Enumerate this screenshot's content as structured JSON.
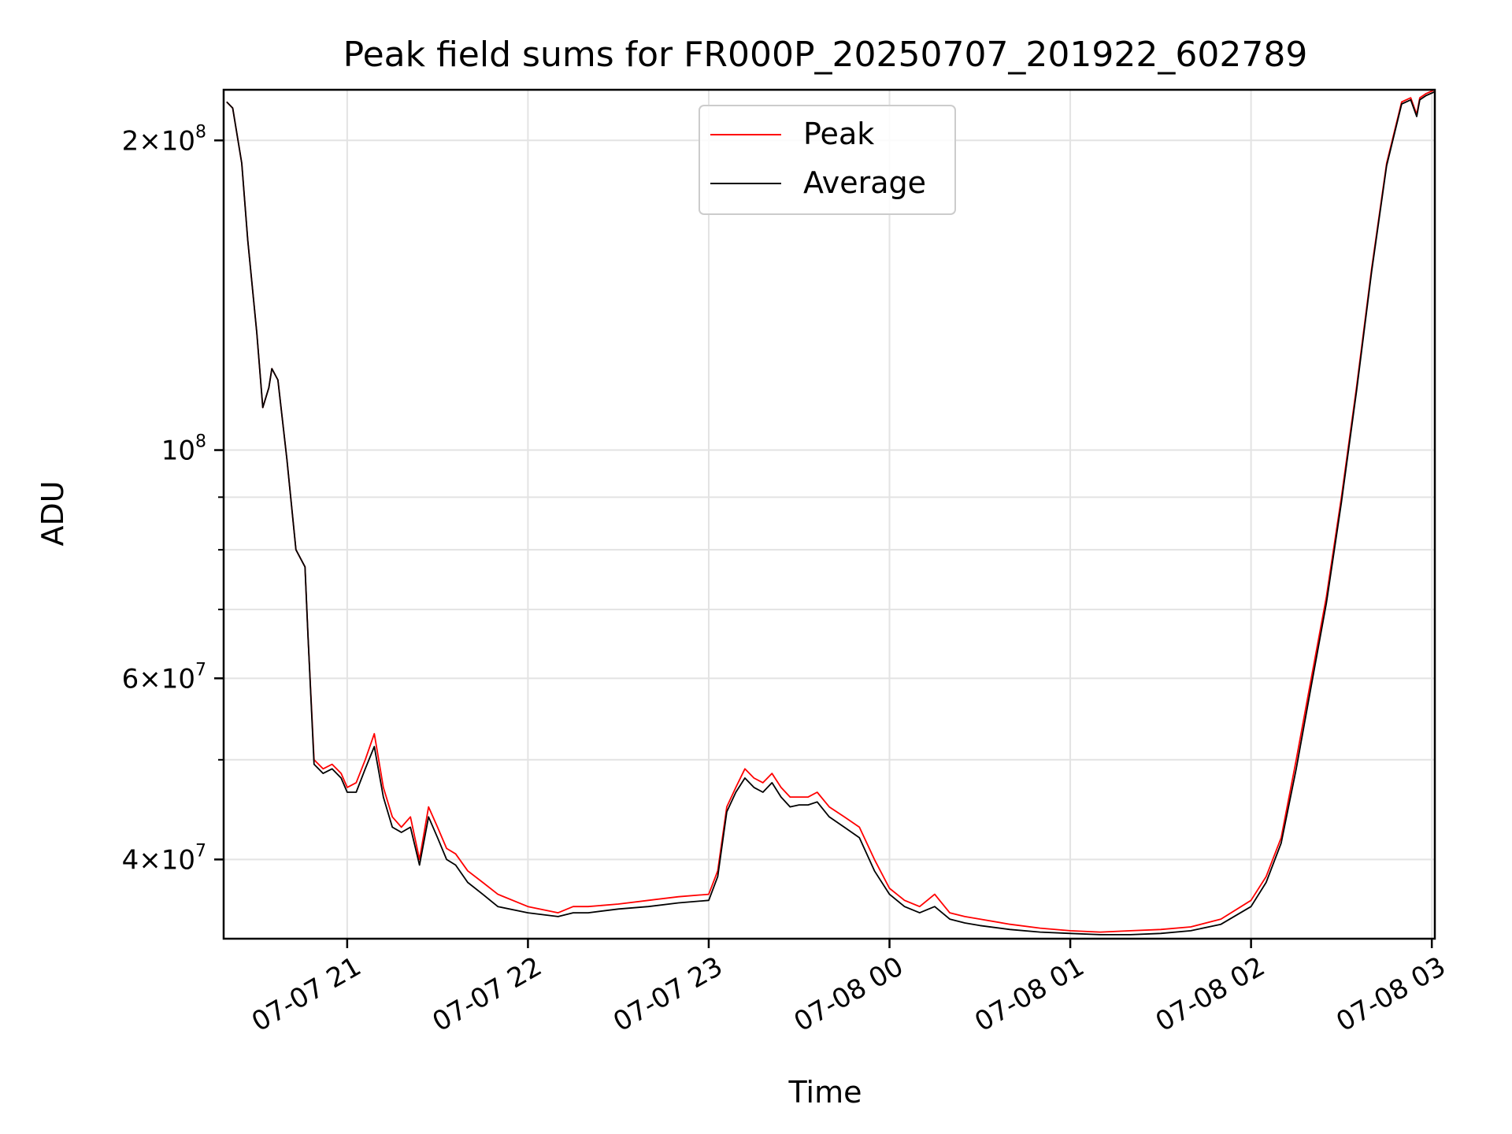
{
  "chart_data": {
    "type": "line",
    "title": "Peak field sums for FR000P_20250707_201922_602789",
    "xlabel": "Time",
    "ylabel": "ADU",
    "yscale": "log",
    "grid": true,
    "legend_position": "top-center",
    "xlim": [
      "2025-07-07 20:19",
      "2025-07-08 03:01"
    ],
    "ylim": [
      33500000,
      224000000
    ],
    "x_ticks": [
      {
        "value": "2025-07-07 21:00",
        "label": "07-07 21"
      },
      {
        "value": "2025-07-07 22:00",
        "label": "07-07 22"
      },
      {
        "value": "2025-07-07 23:00",
        "label": "07-07 23"
      },
      {
        "value": "2025-07-08 00:00",
        "label": "07-08 00"
      },
      {
        "value": "2025-07-08 01:00",
        "label": "07-08 01"
      },
      {
        "value": "2025-07-08 02:00",
        "label": "07-08 02"
      },
      {
        "value": "2025-07-08 03:00",
        "label": "07-08 03"
      }
    ],
    "y_ticks": [
      {
        "value": 40000000,
        "mantissa": "4",
        "exponent": "7"
      },
      {
        "value": 60000000,
        "mantissa": "6",
        "exponent": "7"
      },
      {
        "value": 100000000,
        "mantissa": "",
        "exponent": "8"
      },
      {
        "value": 200000000,
        "mantissa": "2",
        "exponent": "8"
      }
    ],
    "y_minor_ticks": [
      50000000,
      70000000,
      80000000,
      90000000
    ],
    "series": [
      {
        "name": "Peak",
        "color": "#ff0000",
        "x": [
          "2025-07-07 20:20",
          "2025-07-07 20:22",
          "2025-07-07 20:25",
          "2025-07-07 20:27",
          "2025-07-07 20:30",
          "2025-07-07 20:32",
          "2025-07-07 20:34",
          "2025-07-07 20:35",
          "2025-07-07 20:37",
          "2025-07-07 20:40",
          "2025-07-07 20:43",
          "2025-07-07 20:46",
          "2025-07-07 20:47",
          "2025-07-07 20:49",
          "2025-07-07 20:52",
          "2025-07-07 20:55",
          "2025-07-07 20:58",
          "2025-07-07 21:00",
          "2025-07-07 21:03",
          "2025-07-07 21:06",
          "2025-07-07 21:09",
          "2025-07-07 21:12",
          "2025-07-07 21:15",
          "2025-07-07 21:18",
          "2025-07-07 21:21",
          "2025-07-07 21:24",
          "2025-07-07 21:27",
          "2025-07-07 21:30",
          "2025-07-07 21:33",
          "2025-07-07 21:36",
          "2025-07-07 21:40",
          "2025-07-07 21:45",
          "2025-07-07 21:50",
          "2025-07-07 22:00",
          "2025-07-07 22:10",
          "2025-07-07 22:15",
          "2025-07-07 22:20",
          "2025-07-07 22:30",
          "2025-07-07 22:40",
          "2025-07-07 22:50",
          "2025-07-07 23:00",
          "2025-07-07 23:03",
          "2025-07-07 23:06",
          "2025-07-07 23:09",
          "2025-07-07 23:12",
          "2025-07-07 23:15",
          "2025-07-07 23:18",
          "2025-07-07 23:21",
          "2025-07-07 23:24",
          "2025-07-07 23:27",
          "2025-07-07 23:30",
          "2025-07-07 23:33",
          "2025-07-07 23:36",
          "2025-07-07 23:40",
          "2025-07-07 23:45",
          "2025-07-07 23:50",
          "2025-07-07 23:55",
          "2025-07-08 00:00",
          "2025-07-08 00:05",
          "2025-07-08 00:10",
          "2025-07-08 00:15",
          "2025-07-08 00:20",
          "2025-07-08 00:25",
          "2025-07-08 00:30",
          "2025-07-08 00:40",
          "2025-07-08 00:50",
          "2025-07-08 01:00",
          "2025-07-08 01:10",
          "2025-07-08 01:20",
          "2025-07-08 01:30",
          "2025-07-08 01:40",
          "2025-07-08 01:50",
          "2025-07-08 02:00",
          "2025-07-08 02:05",
          "2025-07-08 02:10",
          "2025-07-08 02:15",
          "2025-07-08 02:20",
          "2025-07-08 02:25",
          "2025-07-08 02:30",
          "2025-07-08 02:35",
          "2025-07-08 02:40",
          "2025-07-08 02:45",
          "2025-07-08 02:50",
          "2025-07-08 02:53",
          "2025-07-08 02:55",
          "2025-07-08 02:56",
          "2025-07-08 02:58",
          "2025-07-08 03:01"
        ],
        "values": [
          218000000,
          215000000,
          190000000,
          160000000,
          130000000,
          110000000,
          115000000,
          120000000,
          117000000,
          98000000,
          80000000,
          77000000,
          66000000,
          50000000,
          49000000,
          49500000,
          48500000,
          47000000,
          47500000,
          50000000,
          53000000,
          47000000,
          44000000,
          43000000,
          44000000,
          40000000,
          45000000,
          43000000,
          41000000,
          40500000,
          39000000,
          38000000,
          37000000,
          36000000,
          35500000,
          36000000,
          36000000,
          36200000,
          36500000,
          36800000,
          37000000,
          39000000,
          45000000,
          47000000,
          49000000,
          48000000,
          47500000,
          48500000,
          47000000,
          46000000,
          46000000,
          46000000,
          46500000,
          45000000,
          44000000,
          43000000,
          40000000,
          37500000,
          36500000,
          36000000,
          37000000,
          35500000,
          35200000,
          35000000,
          34600000,
          34300000,
          34100000,
          34000000,
          34100000,
          34200000,
          34400000,
          35000000,
          36500000,
          38500000,
          42000000,
          50000000,
          60000000,
          72000000,
          90000000,
          115000000,
          150000000,
          190000000,
          218000000,
          220000000,
          212000000,
          220000000,
          222000000,
          224000000
        ]
      },
      {
        "name": "Average",
        "color": "#000000",
        "x": [
          "2025-07-07 20:20",
          "2025-07-07 20:22",
          "2025-07-07 20:25",
          "2025-07-07 20:27",
          "2025-07-07 20:30",
          "2025-07-07 20:32",
          "2025-07-07 20:34",
          "2025-07-07 20:35",
          "2025-07-07 20:37",
          "2025-07-07 20:40",
          "2025-07-07 20:43",
          "2025-07-07 20:46",
          "2025-07-07 20:47",
          "2025-07-07 20:49",
          "2025-07-07 20:52",
          "2025-07-07 20:55",
          "2025-07-07 20:58",
          "2025-07-07 21:00",
          "2025-07-07 21:03",
          "2025-07-07 21:06",
          "2025-07-07 21:09",
          "2025-07-07 21:12",
          "2025-07-07 21:15",
          "2025-07-07 21:18",
          "2025-07-07 21:21",
          "2025-07-07 21:24",
          "2025-07-07 21:27",
          "2025-07-07 21:30",
          "2025-07-07 21:33",
          "2025-07-07 21:36",
          "2025-07-07 21:40",
          "2025-07-07 21:45",
          "2025-07-07 21:50",
          "2025-07-07 22:00",
          "2025-07-07 22:10",
          "2025-07-07 22:15",
          "2025-07-07 22:20",
          "2025-07-07 22:30",
          "2025-07-07 22:40",
          "2025-07-07 22:50",
          "2025-07-07 23:00",
          "2025-07-07 23:03",
          "2025-07-07 23:06",
          "2025-07-07 23:09",
          "2025-07-07 23:12",
          "2025-07-07 23:15",
          "2025-07-07 23:18",
          "2025-07-07 23:21",
          "2025-07-07 23:24",
          "2025-07-07 23:27",
          "2025-07-07 23:30",
          "2025-07-07 23:33",
          "2025-07-07 23:36",
          "2025-07-07 23:40",
          "2025-07-07 23:45",
          "2025-07-07 23:50",
          "2025-07-07 23:55",
          "2025-07-08 00:00",
          "2025-07-08 00:05",
          "2025-07-08 00:10",
          "2025-07-08 00:15",
          "2025-07-08 00:20",
          "2025-07-08 00:25",
          "2025-07-08 00:30",
          "2025-07-08 00:40",
          "2025-07-08 00:50",
          "2025-07-08 01:00",
          "2025-07-08 01:10",
          "2025-07-08 01:20",
          "2025-07-08 01:30",
          "2025-07-08 01:40",
          "2025-07-08 01:50",
          "2025-07-08 02:00",
          "2025-07-08 02:05",
          "2025-07-08 02:10",
          "2025-07-08 02:15",
          "2025-07-08 02:20",
          "2025-07-08 02:25",
          "2025-07-08 02:30",
          "2025-07-08 02:35",
          "2025-07-08 02:40",
          "2025-07-08 02:45",
          "2025-07-08 02:50",
          "2025-07-08 02:53",
          "2025-07-08 02:55",
          "2025-07-08 02:56",
          "2025-07-08 02:58",
          "2025-07-08 03:01"
        ],
        "values": [
          218000000,
          215000000,
          190000000,
          160000000,
          130000000,
          110000000,
          115000000,
          120000000,
          117000000,
          98000000,
          80000000,
          77000000,
          66000000,
          49500000,
          48500000,
          49000000,
          48000000,
          46500000,
          46500000,
          49000000,
          51500000,
          46000000,
          43000000,
          42500000,
          43000000,
          39500000,
          44000000,
          42000000,
          40000000,
          39500000,
          38000000,
          37000000,
          36000000,
          35500000,
          35200000,
          35500000,
          35500000,
          35800000,
          36000000,
          36300000,
          36500000,
          38500000,
          44500000,
          46500000,
          48000000,
          47000000,
          46500000,
          47500000,
          46000000,
          45000000,
          45200000,
          45200000,
          45500000,
          44000000,
          43000000,
          42000000,
          39000000,
          37000000,
          36000000,
          35500000,
          36000000,
          35000000,
          34700000,
          34500000,
          34200000,
          34000000,
          33900000,
          33800000,
          33800000,
          33900000,
          34100000,
          34600000,
          36000000,
          38000000,
          41500000,
          49000000,
          59000000,
          71000000,
          89000000,
          114000000,
          149000000,
          189000000,
          217000000,
          219000000,
          211000000,
          219000000,
          221000000,
          223000000
        ]
      }
    ]
  }
}
